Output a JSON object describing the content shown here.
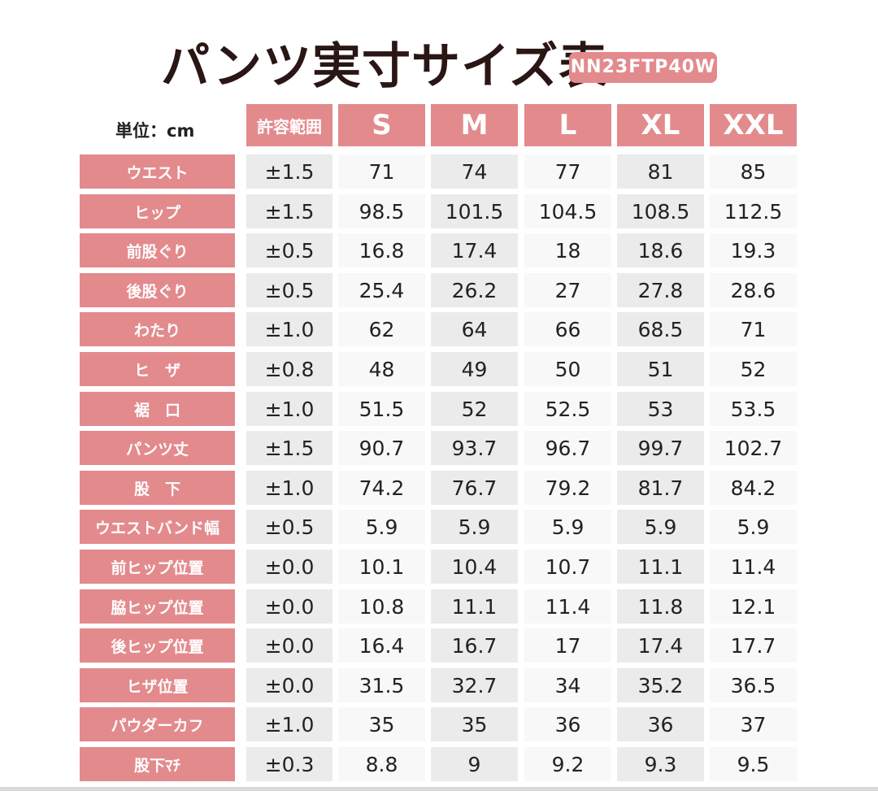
{
  "title": "パンツ実寸サイズ表",
  "model_code": "NN23FTP40W",
  "unit_label": "単位：cm",
  "colors": {
    "header_bg": "#e38a8d",
    "header_text": "#ffffff",
    "cell_alt": "#ebebeb",
    "title": "#2a1614"
  },
  "columns": {
    "tolerance": "許容範囲",
    "sizes": [
      "S",
      "M",
      "L",
      "XL",
      "XXL"
    ]
  },
  "rows": [
    {
      "label": "ウエスト",
      "tolerance": "±1.5",
      "values": [
        "71",
        "74",
        "77",
        "81",
        "85"
      ]
    },
    {
      "label": "ヒップ",
      "tolerance": "±1.5",
      "values": [
        "98.5",
        "101.5",
        "104.5",
        "108.5",
        "112.5"
      ]
    },
    {
      "label": "前股ぐり",
      "tolerance": "±0.5",
      "values": [
        "16.8",
        "17.4",
        "18",
        "18.6",
        "19.3"
      ]
    },
    {
      "label": "後股ぐり",
      "tolerance": "±0.5",
      "values": [
        "25.4",
        "26.2",
        "27",
        "27.8",
        "28.6"
      ]
    },
    {
      "label": "わたり",
      "tolerance": "±1.0",
      "values": [
        "62",
        "64",
        "66",
        "68.5",
        "71"
      ]
    },
    {
      "label": "ヒ　ザ",
      "tolerance": "±0.8",
      "values": [
        "48",
        "49",
        "50",
        "51",
        "52"
      ]
    },
    {
      "label": "裾　口",
      "tolerance": "±1.0",
      "values": [
        "51.5",
        "52",
        "52.5",
        "53",
        "53.5"
      ]
    },
    {
      "label": "パンツ丈",
      "tolerance": "±1.5",
      "values": [
        "90.7",
        "93.7",
        "96.7",
        "99.7",
        "102.7"
      ]
    },
    {
      "label": "股　下",
      "tolerance": "±1.0",
      "values": [
        "74.2",
        "76.7",
        "79.2",
        "81.7",
        "84.2"
      ]
    },
    {
      "label": "ウエストバンド幅",
      "tolerance": "±0.5",
      "values": [
        "5.9",
        "5.9",
        "5.9",
        "5.9",
        "5.9"
      ]
    },
    {
      "label": "前ヒップ位置",
      "tolerance": "±0.0",
      "values": [
        "10.1",
        "10.4",
        "10.7",
        "11.1",
        "11.4"
      ]
    },
    {
      "label": "脇ヒップ位置",
      "tolerance": "±0.0",
      "values": [
        "10.8",
        "11.1",
        "11.4",
        "11.8",
        "12.1"
      ]
    },
    {
      "label": "後ヒップ位置",
      "tolerance": "±0.0",
      "values": [
        "16.4",
        "16.7",
        "17",
        "17.4",
        "17.7"
      ]
    },
    {
      "label": "ヒザ位置",
      "tolerance": "±0.0",
      "values": [
        "31.5",
        "32.7",
        "34",
        "35.2",
        "36.5"
      ]
    },
    {
      "label": "パウダーカフ",
      "tolerance": "±1.0",
      "values": [
        "35",
        "35",
        "36",
        "36",
        "37"
      ]
    },
    {
      "label": "股下ﾏﾁ",
      "tolerance": "±0.3",
      "values": [
        "8.8",
        "9",
        "9.2",
        "9.3",
        "9.5"
      ]
    }
  ]
}
